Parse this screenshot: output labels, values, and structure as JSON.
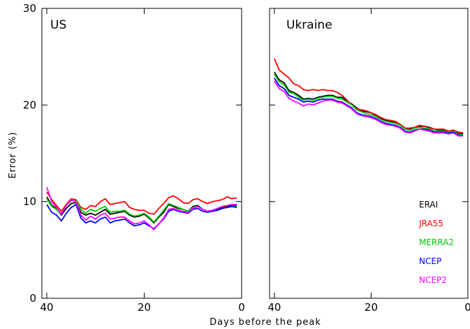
{
  "chart_data": {
    "type": "line",
    "xlabel": "Days before the peak",
    "ylabel": "Error (%)",
    "xlim": [
      41,
      0
    ],
    "ylim": [
      0,
      30
    ],
    "x_ticks": [
      40,
      20,
      0
    ],
    "y_ticks": [
      0,
      10,
      20,
      30
    ],
    "grid": false,
    "legend_position": "bottom-right of right panel",
    "x": [
      40,
      39,
      38,
      37,
      36,
      35,
      34,
      33,
      32,
      31,
      30,
      29,
      28,
      27,
      26,
      25,
      24,
      23,
      22,
      21,
      20,
      19,
      18,
      17,
      16,
      15,
      14,
      13,
      12,
      11,
      10,
      9,
      8,
      7,
      6,
      5,
      4,
      3,
      2,
      1
    ],
    "series_styles": [
      {
        "name": "ERAI",
        "color": "#000000"
      },
      {
        "name": "JRA55",
        "color": "#ff0000"
      },
      {
        "name": "MERRA2",
        "color": "#00cc00"
      },
      {
        "name": "NCEP",
        "color": "#0000ff"
      },
      {
        "name": "NCEP2",
        "color": "#ff00ff"
      }
    ],
    "panels": [
      {
        "title": "US",
        "series": [
          {
            "name": "ERAI",
            "values": [
              10.5,
              9.6,
              9.3,
              8.6,
              9.3,
              9.8,
              9.9,
              8.9,
              8.6,
              8.8,
              8.6,
              8.9,
              9.2,
              8.7,
              8.8,
              8.9,
              9.0,
              8.6,
              8.4,
              8.5,
              8.7,
              8.3,
              7.8,
              8.4,
              8.9,
              9.7,
              9.5,
              9.3,
              9.2,
              9.0,
              9.5,
              9.6,
              9.2,
              9.0,
              9.1,
              9.2,
              9.4,
              9.5,
              9.6,
              9.6
            ]
          },
          {
            "name": "JRA55",
            "values": [
              11.0,
              10.2,
              9.6,
              9.0,
              9.7,
              10.3,
              10.2,
              9.4,
              9.2,
              9.6,
              9.5,
              10.0,
              10.3,
              9.7,
              9.8,
              9.9,
              10.0,
              9.4,
              9.2,
              9.1,
              9.1,
              8.8,
              8.7,
              9.3,
              9.8,
              10.4,
              10.6,
              10.3,
              9.9,
              9.8,
              10.2,
              10.3,
              10.0,
              9.8,
              10.0,
              10.1,
              10.2,
              10.5,
              10.3,
              10.4
            ]
          },
          {
            "name": "MERRA2",
            "values": [
              10.3,
              9.5,
              9.2,
              8.7,
              9.6,
              10.1,
              10.1,
              9.2,
              8.8,
              9.2,
              9.0,
              9.3,
              9.5,
              8.9,
              9.0,
              9.0,
              9.1,
              8.7,
              8.5,
              8.6,
              8.8,
              8.4,
              7.9,
              8.5,
              9.1,
              9.8,
              9.6,
              9.4,
              9.2,
              9.0,
              9.4,
              9.5,
              9.2,
              9.0,
              9.1,
              9.1,
              9.3,
              9.4,
              9.5,
              9.5
            ]
          },
          {
            "name": "NCEP",
            "values": [
              9.7,
              8.9,
              8.6,
              8.0,
              8.8,
              9.4,
              9.7,
              8.3,
              7.8,
              8.0,
              7.8,
              8.2,
              8.4,
              7.8,
              8.0,
              8.1,
              8.2,
              7.8,
              7.5,
              7.6,
              7.8,
              7.5,
              7.2,
              7.7,
              8.2,
              9.0,
              9.2,
              9.0,
              8.9,
              8.8,
              9.2,
              9.3,
              9.0,
              8.9,
              9.0,
              9.1,
              9.3,
              9.4,
              9.5,
              9.4
            ]
          },
          {
            "name": "NCEP2",
            "values": [
              11.5,
              10.0,
              9.4,
              8.7,
              9.6,
              10.2,
              10.0,
              8.6,
              8.1,
              8.5,
              8.2,
              8.6,
              8.8,
              8.2,
              8.3,
              8.4,
              8.4,
              8.0,
              7.7,
              7.8,
              8.0,
              7.6,
              7.1,
              7.7,
              8.3,
              9.2,
              9.3,
              9.1,
              9.0,
              8.9,
              9.3,
              9.5,
              9.2,
              9.0,
              9.1,
              9.3,
              9.5,
              9.6,
              9.7,
              9.7
            ]
          }
        ]
      },
      {
        "title": "Ukraine",
        "series": [
          {
            "name": "ERAI",
            "values": [
              23.4,
              22.6,
              22.3,
              21.5,
              21.3,
              21.0,
              20.6,
              20.7,
              20.6,
              20.8,
              20.9,
              21.0,
              21.0,
              20.8,
              20.8,
              20.4,
              20.1,
              19.7,
              19.4,
              19.3,
              19.2,
              18.9,
              18.6,
              18.4,
              18.3,
              18.2,
              18.0,
              17.6,
              17.5,
              17.7,
              17.8,
              17.8,
              17.7,
              17.5,
              17.4,
              17.4,
              17.3,
              17.4,
              17.1,
              17.0
            ]
          },
          {
            "name": "JRA55",
            "values": [
              24.8,
              23.6,
              23.2,
              22.8,
              22.2,
              22.0,
              21.6,
              21.5,
              21.6,
              21.5,
              21.6,
              21.5,
              21.5,
              21.3,
              21.0,
              20.5,
              20.0,
              19.6,
              19.5,
              19.4,
              19.2,
              19.0,
              18.7,
              18.5,
              18.4,
              18.3,
              18.0,
              17.6,
              17.6,
              17.7,
              17.9,
              17.8,
              17.6,
              17.5,
              17.5,
              17.5,
              17.3,
              17.4,
              17.2,
              17.1
            ]
          },
          {
            "name": "MERRA2",
            "values": [
              23.2,
              22.4,
              22.1,
              21.3,
              21.2,
              20.8,
              20.5,
              20.6,
              20.5,
              20.7,
              20.8,
              20.9,
              20.9,
              20.7,
              20.6,
              20.3,
              20.0,
              19.5,
              19.3,
              19.1,
              19.0,
              18.8,
              18.5,
              18.3,
              18.2,
              18.1,
              17.9,
              17.5,
              17.4,
              17.6,
              17.7,
              17.6,
              17.5,
              17.3,
              17.3,
              17.3,
              17.2,
              17.3,
              17.0,
              16.9
            ]
          },
          {
            "name": "NCEP",
            "values": [
              22.8,
              22.0,
              21.7,
              21.0,
              20.8,
              20.6,
              20.3,
              20.4,
              20.3,
              20.5,
              20.6,
              20.6,
              20.6,
              20.4,
              20.3,
              20.0,
              19.7,
              19.2,
              19.0,
              18.9,
              18.8,
              18.6,
              18.3,
              18.1,
              18.0,
              17.9,
              17.7,
              17.3,
              17.2,
              17.4,
              17.5,
              17.5,
              17.4,
              17.2,
              17.2,
              17.2,
              17.1,
              17.2,
              16.9,
              16.8
            ]
          },
          {
            "name": "NCEP2",
            "values": [
              22.5,
              21.7,
              21.4,
              20.7,
              20.4,
              20.2,
              19.9,
              20.1,
              20.0,
              20.2,
              20.4,
              20.5,
              20.5,
              20.3,
              20.2,
              19.9,
              19.6,
              19.1,
              18.9,
              18.8,
              18.7,
              18.5,
              18.2,
              18.0,
              17.9,
              17.8,
              17.6,
              17.2,
              17.1,
              17.3,
              17.5,
              17.4,
              17.3,
              17.1,
              17.1,
              17.1,
              17.0,
              17.1,
              16.8,
              16.8
            ]
          }
        ]
      }
    ]
  }
}
